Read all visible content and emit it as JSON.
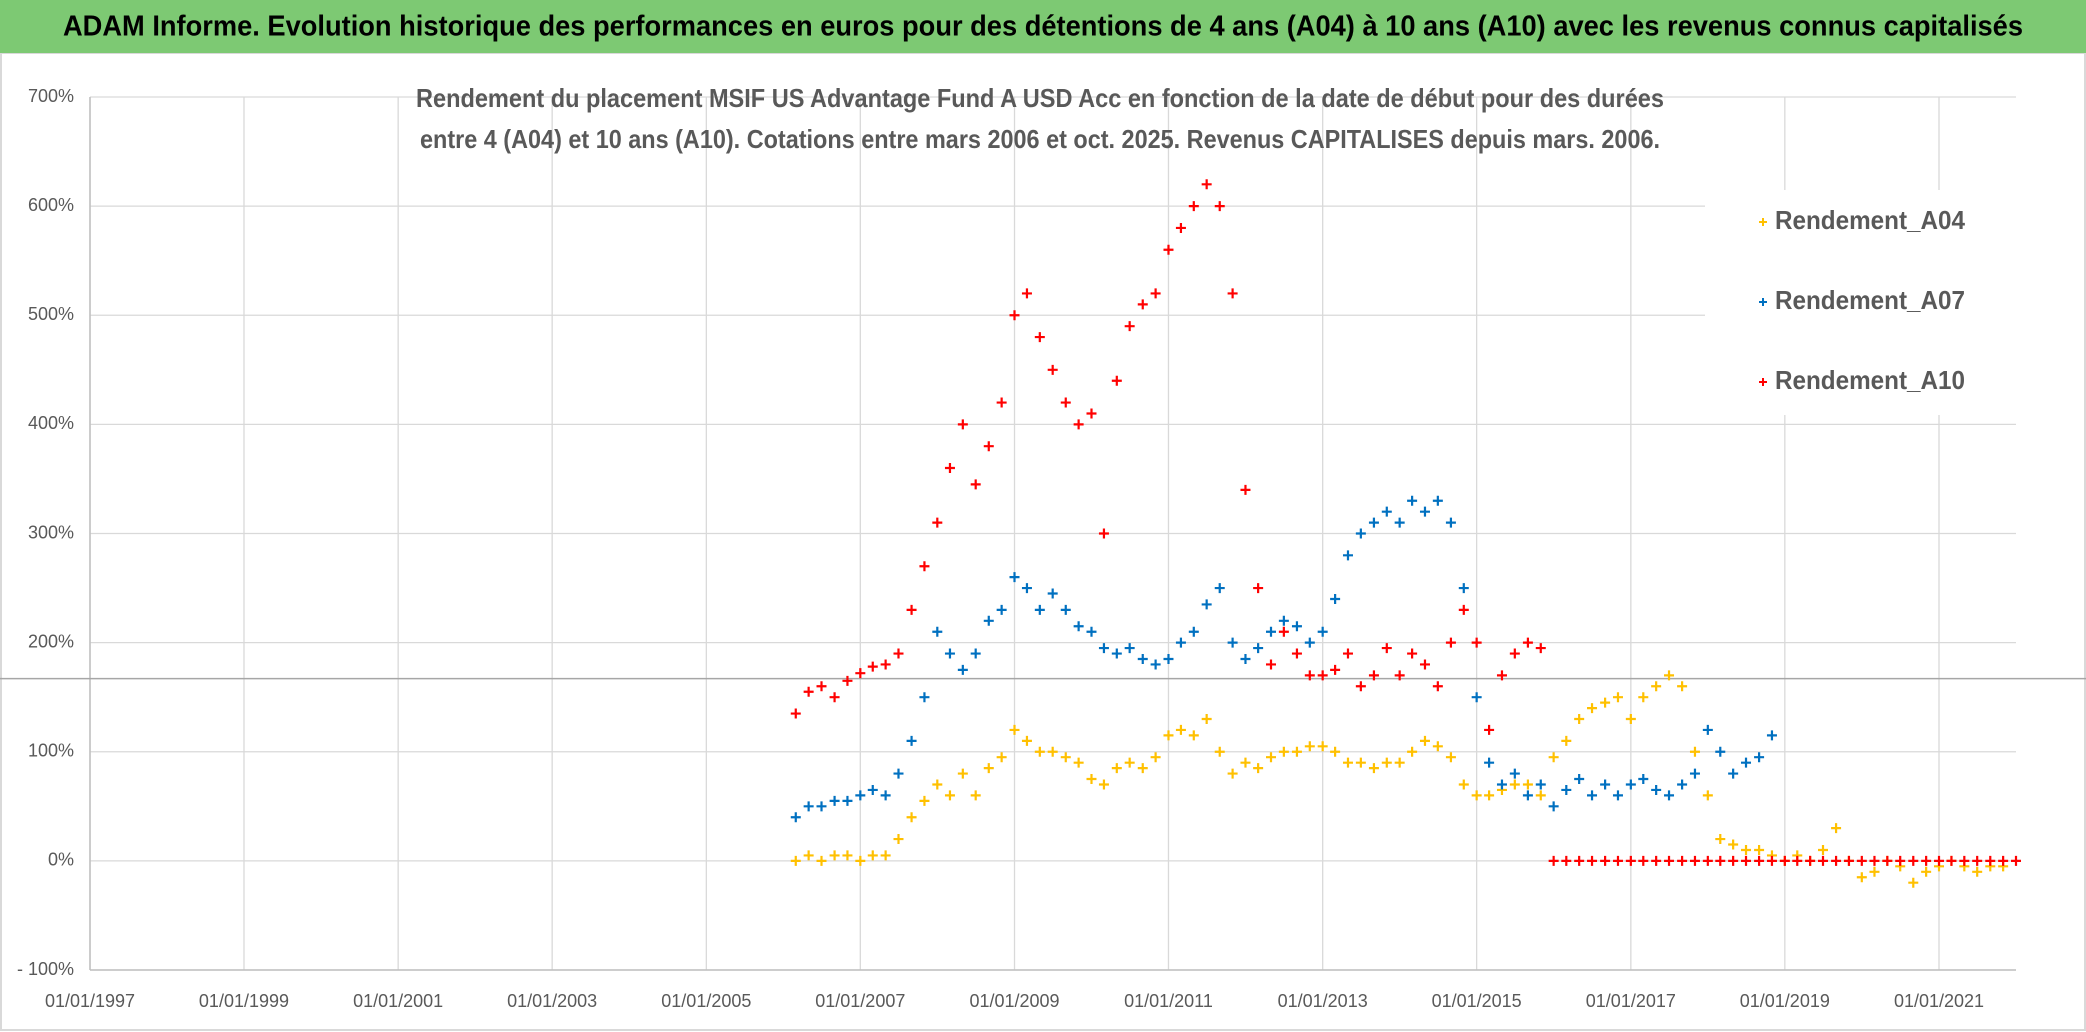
{
  "header": {
    "title": "ADAM Informe. Evolution historique des performances en euros pour des détentions de 4 ans (A04) à 10 ans (A10) avec les revenus connus capitalisés"
  },
  "chart_data": {
    "type": "scatter",
    "title": [
      "Rendement du placement MSIF US Advantage Fund A USD Acc en fonction de la date de début pour des durées",
      "entre 4 (A04) et 10 ans (A10). Cotations entre mars 2006 et oct. 2025. Revenus CAPITALISES depuis mars. 2006."
    ],
    "xlim": [
      "1997-01-01",
      "2022-01-01"
    ],
    "xticks": [
      {
        "value": "1997-01-01",
        "label": "01/01/1997"
      },
      {
        "value": "1999-01-01",
        "label": "01/01/1999"
      },
      {
        "value": "2001-01-01",
        "label": "01/01/2001"
      },
      {
        "value": "2003-01-01",
        "label": "01/01/2003"
      },
      {
        "value": "2005-01-01",
        "label": "01/01/2005"
      },
      {
        "value": "2007-01-01",
        "label": "01/01/2007"
      },
      {
        "value": "2009-01-01",
        "label": "01/01/2009"
      },
      {
        "value": "2011-01-01",
        "label": "01/01/2011"
      },
      {
        "value": "2013-01-01",
        "label": "01/01/2013"
      },
      {
        "value": "2015-01-01",
        "label": "01/01/2015"
      },
      {
        "value": "2017-01-01",
        "label": "01/01/2017"
      },
      {
        "value": "2019-01-01",
        "label": "01/01/2019"
      },
      {
        "value": "2021-01-01",
        "label": "01/01/2021"
      }
    ],
    "ylim": [
      -100,
      700
    ],
    "yticks": [
      {
        "value": -100,
        "label": "- 100%"
      },
      {
        "value": 0,
        "label": "0%"
      },
      {
        "value": 100,
        "label": "100%"
      },
      {
        "value": 200,
        "label": "200%"
      },
      {
        "value": 300,
        "label": "300%"
      },
      {
        "value": 400,
        "label": "400%"
      },
      {
        "value": 500,
        "label": "500%"
      },
      {
        "value": 600,
        "label": "600%"
      },
      {
        "value": 700,
        "label": "700%"
      }
    ],
    "grid": true,
    "hline": 167,
    "hline_color": "#a6a6a6",
    "legend": "upper right",
    "series": [
      {
        "name": "Rendement_A04",
        "color": "#ffc000",
        "x": [
          "2006-03-01",
          "2006-05-01",
          "2006-07-01",
          "2006-09-01",
          "2006-11-01",
          "2007-01-01",
          "2007-03-01",
          "2007-05-01",
          "2007-07-01",
          "2007-09-01",
          "2007-11-01",
          "2008-01-01",
          "2008-03-01",
          "2008-05-01",
          "2008-07-01",
          "2008-09-01",
          "2008-11-01",
          "2009-01-01",
          "2009-03-01",
          "2009-05-01",
          "2009-07-01",
          "2009-09-01",
          "2009-11-01",
          "2010-01-01",
          "2010-03-01",
          "2010-05-01",
          "2010-07-01",
          "2010-09-01",
          "2010-11-01",
          "2011-01-01",
          "2011-03-01",
          "2011-05-01",
          "2011-07-01",
          "2011-09-01",
          "2011-11-01",
          "2012-01-01",
          "2012-03-01",
          "2012-05-01",
          "2012-07-01",
          "2012-09-01",
          "2012-11-01",
          "2013-01-01",
          "2013-03-01",
          "2013-05-01",
          "2013-07-01",
          "2013-09-01",
          "2013-11-01",
          "2014-01-01",
          "2014-03-01",
          "2014-05-01",
          "2014-07-01",
          "2014-09-01",
          "2014-11-01",
          "2015-01-01",
          "2015-03-01",
          "2015-05-01",
          "2015-07-01",
          "2015-09-01",
          "2015-11-01",
          "2016-01-01",
          "2016-03-01",
          "2016-05-01",
          "2016-07-01",
          "2016-09-01",
          "2016-11-01",
          "2017-01-01",
          "2017-03-01",
          "2017-05-01",
          "2017-07-01",
          "2017-09-01",
          "2017-11-01",
          "2018-01-01",
          "2018-03-01",
          "2018-05-01",
          "2018-07-01",
          "2018-09-01",
          "2018-11-01",
          "2019-01-01",
          "2019-03-01",
          "2019-05-01",
          "2019-07-01",
          "2019-09-01",
          "2019-11-01",
          "2020-01-01",
          "2020-03-01",
          "2020-05-01",
          "2020-07-01",
          "2020-09-01",
          "2020-11-01",
          "2021-01-01",
          "2021-03-01",
          "2021-05-01",
          "2021-07-01",
          "2021-09-01",
          "2021-11-01"
        ],
        "values": [
          0,
          5,
          0,
          5,
          5,
          0,
          5,
          5,
          20,
          40,
          55,
          70,
          60,
          80,
          60,
          85,
          95,
          120,
          110,
          100,
          100,
          95,
          90,
          75,
          70,
          85,
          90,
          85,
          95,
          115,
          120,
          115,
          130,
          100,
          80,
          90,
          85,
          95,
          100,
          100,
          105,
          105,
          100,
          90,
          90,
          85,
          90,
          90,
          100,
          110,
          105,
          95,
          70,
          60,
          60,
          65,
          70,
          70,
          60,
          95,
          110,
          130,
          140,
          145,
          150,
          130,
          150,
          160,
          170,
          160,
          100,
          60,
          20,
          15,
          10,
          10,
          5,
          0,
          5,
          0,
          10,
          30,
          0,
          -15,
          -10,
          0,
          -5,
          -20,
          -10,
          -5,
          0,
          -5,
          -10,
          -5,
          -5
        ]
      },
      {
        "name": "Rendement_A07",
        "color": "#0070c0",
        "x": [
          "2006-03-01",
          "2006-05-01",
          "2006-07-01",
          "2006-09-01",
          "2006-11-01",
          "2007-01-01",
          "2007-03-01",
          "2007-05-01",
          "2007-07-01",
          "2007-09-01",
          "2007-11-01",
          "2008-01-01",
          "2008-03-01",
          "2008-05-01",
          "2008-07-01",
          "2008-09-01",
          "2008-11-01",
          "2009-01-01",
          "2009-03-01",
          "2009-05-01",
          "2009-07-01",
          "2009-09-01",
          "2009-11-01",
          "2010-01-01",
          "2010-03-01",
          "2010-05-01",
          "2010-07-01",
          "2010-09-01",
          "2010-11-01",
          "2011-01-01",
          "2011-03-01",
          "2011-05-01",
          "2011-07-01",
          "2011-09-01",
          "2011-11-01",
          "2012-01-01",
          "2012-03-01",
          "2012-05-01",
          "2012-07-01",
          "2012-09-01",
          "2012-11-01",
          "2013-01-01",
          "2013-03-01",
          "2013-05-01",
          "2013-07-01",
          "2013-09-01",
          "2013-11-01",
          "2014-01-01",
          "2014-03-01",
          "2014-05-01",
          "2014-07-01",
          "2014-09-01",
          "2014-11-01",
          "2015-01-01",
          "2015-03-01",
          "2015-05-01",
          "2015-07-01",
          "2015-09-01",
          "2015-11-01",
          "2016-01-01",
          "2016-03-01",
          "2016-05-01",
          "2016-07-01",
          "2016-09-01",
          "2016-11-01",
          "2017-01-01",
          "2017-03-01",
          "2017-05-01",
          "2017-07-01",
          "2017-09-01",
          "2017-11-01",
          "2018-01-01",
          "2018-03-01",
          "2018-05-01",
          "2018-07-01",
          "2018-09-01",
          "2018-11-01"
        ],
        "values": [
          40,
          50,
          50,
          55,
          55,
          60,
          65,
          60,
          80,
          110,
          150,
          210,
          190,
          175,
          190,
          220,
          230,
          260,
          250,
          230,
          245,
          230,
          215,
          210,
          195,
          190,
          195,
          185,
          180,
          185,
          200,
          210,
          235,
          250,
          200,
          185,
          195,
          210,
          220,
          215,
          200,
          210,
          240,
          280,
          300,
          310,
          320,
          310,
          330,
          320,
          330,
          310,
          250,
          150,
          90,
          70,
          80,
          60,
          70,
          50,
          65,
          75,
          60,
          70,
          60,
          70,
          75,
          65,
          60,
          70,
          80,
          120,
          100,
          80,
          90,
          95,
          115
        ]
      },
      {
        "name": "Rendement_A10",
        "color": "#ff0000",
        "x": [
          "2006-03-01",
          "2006-05-01",
          "2006-07-01",
          "2006-09-01",
          "2006-11-01",
          "2007-01-01",
          "2007-03-01",
          "2007-05-01",
          "2007-07-01",
          "2007-09-01",
          "2007-11-01",
          "2008-01-01",
          "2008-03-01",
          "2008-05-01",
          "2008-07-01",
          "2008-09-01",
          "2008-11-01",
          "2009-01-01",
          "2009-03-01",
          "2009-05-01",
          "2009-07-01",
          "2009-09-01",
          "2009-11-01",
          "2010-01-01",
          "2010-03-01",
          "2010-05-01",
          "2010-07-01",
          "2010-09-01",
          "2010-11-01",
          "2011-01-01",
          "2011-03-01",
          "2011-05-01",
          "2011-07-01",
          "2011-09-01",
          "2011-11-01",
          "2012-01-01",
          "2012-03-01",
          "2012-05-01",
          "2012-07-01",
          "2012-09-01",
          "2012-11-01",
          "2013-01-01",
          "2013-03-01",
          "2013-05-01",
          "2013-07-01",
          "2013-09-01",
          "2013-11-01",
          "2014-01-01",
          "2014-03-01",
          "2014-05-01",
          "2014-07-01",
          "2014-09-01",
          "2014-11-01",
          "2015-01-01",
          "2015-03-01",
          "2015-05-01",
          "2015-07-01",
          "2015-09-01",
          "2015-11-01",
          "2016-01-01",
          "2016-03-01",
          "2016-05-01",
          "2016-07-01",
          "2016-09-01",
          "2016-11-01",
          "2017-01-01",
          "2017-03-01",
          "2017-05-01",
          "2017-07-01",
          "2017-09-01",
          "2017-11-01",
          "2018-01-01",
          "2018-03-01",
          "2018-05-01",
          "2018-07-01",
          "2018-09-01",
          "2018-11-01",
          "2019-01-01",
          "2019-03-01",
          "2019-05-01",
          "2019-07-01",
          "2019-09-01",
          "2019-11-01",
          "2020-01-01",
          "2020-03-01",
          "2020-05-01",
          "2020-07-01",
          "2020-09-01",
          "2020-11-01",
          "2021-01-01",
          "2021-03-01",
          "2021-05-01",
          "2021-07-01",
          "2021-09-01",
          "2021-11-01",
          "2022-01-01"
        ],
        "values": [
          135,
          155,
          160,
          150,
          165,
          172,
          178,
          180,
          190,
          230,
          270,
          310,
          360,
          400,
          345,
          380,
          420,
          500,
          520,
          480,
          450,
          420,
          400,
          410,
          300,
          440,
          490,
          510,
          520,
          560,
          580,
          600,
          620,
          600,
          520,
          340,
          250,
          180,
          210,
          190,
          170,
          170,
          175,
          190,
          160,
          170,
          195,
          170,
          190,
          180,
          160,
          200,
          230,
          200,
          120,
          170,
          190,
          200,
          195,
          0,
          0,
          0,
          0,
          0,
          0,
          0,
          0,
          0,
          0,
          0,
          0,
          0,
          0,
          0,
          0,
          0,
          0,
          0,
          0,
          0,
          0,
          0,
          0,
          0,
          0,
          0,
          0,
          0,
          0,
          0,
          0,
          0,
          0,
          0,
          0,
          0
        ]
      }
    ]
  }
}
